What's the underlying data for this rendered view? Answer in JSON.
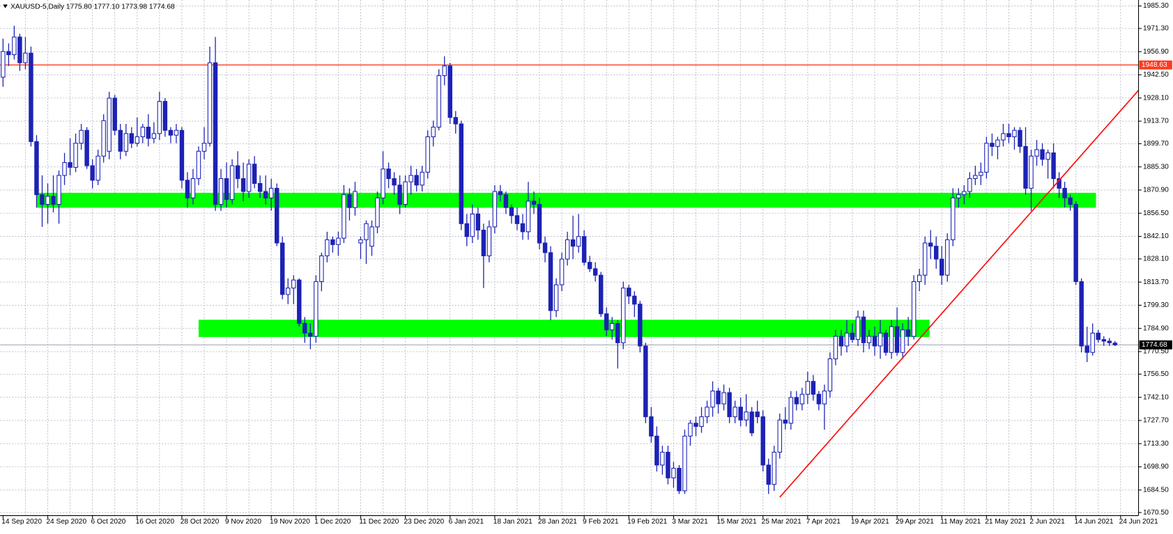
{
  "chart_data": {
    "type": "candlestick",
    "title": "XAUUSD-5,Daily 1775.80 1777.10 1773.98 1774.68",
    "categories": [
      "14 Sep 2020",
      null,
      null,
      null,
      null,
      null,
      null,
      null,
      "24 Sep 2020",
      null,
      null,
      null,
      null,
      null,
      null,
      null,
      "6 Oct 2020",
      null,
      null,
      null,
      null,
      null,
      null,
      null,
      "16 Oct 2020",
      null,
      null,
      null,
      null,
      null,
      null,
      null,
      "28 Oct 2020",
      null,
      null,
      null,
      null,
      null,
      null,
      null,
      "9 Nov 2020",
      null,
      null,
      null,
      null,
      null,
      null,
      null,
      "19 Nov 2020",
      null,
      null,
      null,
      null,
      null,
      null,
      null,
      "1 Dec 2020",
      null,
      null,
      null,
      null,
      null,
      null,
      null,
      "11 Dec 2020",
      null,
      null,
      null,
      null,
      null,
      null,
      null,
      "23 Dec 2020",
      null,
      null,
      null,
      null,
      null,
      null,
      null,
      "6 Jan 2021",
      null,
      null,
      null,
      null,
      null,
      null,
      null,
      "18 Jan 2021",
      null,
      null,
      null,
      null,
      null,
      null,
      null,
      "28 Jan 2021",
      null,
      null,
      null,
      null,
      null,
      null,
      null,
      "9 Feb 2021",
      null,
      null,
      null,
      null,
      null,
      null,
      null,
      "19 Feb 2021",
      null,
      null,
      null,
      null,
      null,
      null,
      null,
      "3 Mar 2021",
      null,
      null,
      null,
      null,
      null,
      null,
      null,
      "15 Mar 2021",
      null,
      null,
      null,
      null,
      null,
      null,
      null,
      "25 Mar 2021",
      null,
      null,
      null,
      null,
      null,
      null,
      null,
      "7 Apr 2021",
      null,
      null,
      null,
      null,
      null,
      null,
      null,
      "19 Apr 2021",
      null,
      null,
      null,
      null,
      null,
      null,
      null,
      "29 Apr 2021",
      null,
      null,
      null,
      null,
      null,
      null,
      null,
      "11 May 2021",
      null,
      null,
      null,
      null,
      null,
      null,
      null,
      "21 May 2021",
      null,
      null,
      null,
      null,
      null,
      null,
      null,
      "2 Jun 2021",
      null,
      null,
      null,
      null,
      null,
      null,
      null,
      "14 Jun 2021",
      null,
      null,
      null,
      null,
      null,
      null,
      null,
      "24 Jun 2021"
    ],
    "candles": [
      [
        1941,
        1965,
        1935,
        1957
      ],
      [
        1957,
        1962,
        1948,
        1955
      ],
      [
        1955,
        1973,
        1952,
        1966
      ],
      [
        1966,
        1968,
        1945,
        1950
      ],
      [
        1950,
        1966,
        1946,
        1956
      ],
      [
        1956,
        1960,
        1898,
        1901
      ],
      [
        1901,
        1905,
        1860,
        1868
      ],
      [
        1868,
        1880,
        1848,
        1862
      ],
      [
        1862,
        1875,
        1850,
        1867
      ],
      [
        1867,
        1880,
        1857,
        1862
      ],
      [
        1862,
        1883,
        1850,
        1880
      ],
      [
        1880,
        1894,
        1874,
        1888
      ],
      [
        1888,
        1903,
        1880,
        1885
      ],
      [
        1885,
        1906,
        1882,
        1900
      ],
      [
        1900,
        1912,
        1896,
        1908
      ],
      [
        1908,
        1910,
        1884,
        1886
      ],
      [
        1886,
        1890,
        1872,
        1877
      ],
      [
        1877,
        1896,
        1874,
        1892
      ],
      [
        1892,
        1918,
        1888,
        1914
      ],
      [
        1895,
        1932,
        1890,
        1928
      ],
      [
        1928,
        1930,
        1905,
        1908
      ],
      [
        1908,
        1912,
        1890,
        1895
      ],
      [
        1895,
        1912,
        1892,
        1906
      ],
      [
        1906,
        1910,
        1897,
        1900
      ],
      [
        1900,
        1916,
        1898,
        1904
      ],
      [
        1904,
        1912,
        1900,
        1910
      ],
      [
        1910,
        1918,
        1898,
        1903
      ],
      [
        1903,
        1913,
        1900,
        1906
      ],
      [
        1906,
        1932,
        1902,
        1926
      ],
      [
        1926,
        1928,
        1904,
        1908
      ],
      [
        1908,
        1910,
        1900,
        1905
      ],
      [
        1905,
        1912,
        1900,
        1908
      ],
      [
        1908,
        1910,
        1872,
        1877
      ],
      [
        1877,
        1882,
        1860,
        1866
      ],
      [
        1866,
        1884,
        1862,
        1878
      ],
      [
        1878,
        1898,
        1874,
        1895
      ],
      [
        1895,
        1910,
        1890,
        1900
      ],
      [
        1900,
        1960,
        1898,
        1950
      ],
      [
        1950,
        1966,
        1858,
        1862
      ],
      [
        1862,
        1884,
        1858,
        1878
      ],
      [
        1878,
        1888,
        1860,
        1865
      ],
      [
        1865,
        1890,
        1862,
        1886
      ],
      [
        1886,
        1895,
        1872,
        1878
      ],
      [
        1878,
        1888,
        1864,
        1870
      ],
      [
        1870,
        1890,
        1866,
        1887
      ],
      [
        1887,
        1892,
        1872,
        1875
      ],
      [
        1875,
        1880,
        1866,
        1870
      ],
      [
        1870,
        1880,
        1862,
        1866
      ],
      [
        1866,
        1878,
        1858,
        1872
      ],
      [
        1872,
        1875,
        1836,
        1838
      ],
      [
        1838,
        1842,
        1803,
        1806
      ],
      [
        1806,
        1816,
        1800,
        1810
      ],
      [
        1810,
        1818,
        1800,
        1815
      ],
      [
        1815,
        1816,
        1786,
        1788
      ],
      [
        1788,
        1792,
        1776,
        1782
      ],
      [
        1782,
        1788,
        1772,
        1780
      ],
      [
        1780,
        1818,
        1776,
        1814
      ],
      [
        1814,
        1832,
        1808,
        1830
      ],
      [
        1830,
        1845,
        1826,
        1840
      ],
      [
        1840,
        1842,
        1832,
        1837
      ],
      [
        1837,
        1845,
        1830,
        1841
      ],
      [
        1841,
        1874,
        1838,
        1868
      ],
      [
        1868,
        1872,
        1852,
        1860
      ],
      [
        1860,
        1876,
        1855,
        1870
      ],
      [
        1838,
        1842,
        1828,
        1840
      ],
      [
        1840,
        1852,
        1825,
        1850
      ],
      [
        1836,
        1852,
        1830,
        1848
      ],
      [
        1848,
        1870,
        1844,
        1866
      ],
      [
        1866,
        1895,
        1862,
        1884
      ],
      [
        1884,
        1888,
        1872,
        1878
      ],
      [
        1878,
        1882,
        1868,
        1874
      ],
      [
        1874,
        1880,
        1856,
        1862
      ],
      [
        1862,
        1880,
        1860,
        1876
      ],
      [
        1876,
        1886,
        1868,
        1880
      ],
      [
        1880,
        1884,
        1870,
        1874
      ],
      [
        1874,
        1886,
        1870,
        1882
      ],
      [
        1882,
        1908,
        1878,
        1904
      ],
      [
        1904,
        1914,
        1898,
        1910
      ],
      [
        1910,
        1946,
        1908,
        1942
      ],
      [
        1942,
        1954,
        1936,
        1948
      ],
      [
        1948,
        1950,
        1912,
        1916
      ],
      [
        1916,
        1920,
        1906,
        1912
      ],
      [
        1912,
        1914,
        1846,
        1850
      ],
      [
        1850,
        1856,
        1836,
        1842
      ],
      [
        1842,
        1862,
        1838,
        1856
      ],
      [
        1856,
        1860,
        1840,
        1846
      ],
      [
        1846,
        1850,
        1810,
        1830
      ],
      [
        1830,
        1852,
        1826,
        1848
      ],
      [
        1848,
        1874,
        1844,
        1870
      ],
      [
        1870,
        1874,
        1864,
        1868
      ],
      [
        1868,
        1870,
        1856,
        1860
      ],
      [
        1860,
        1862,
        1850,
        1855
      ],
      [
        1855,
        1860,
        1846,
        1850
      ],
      [
        1850,
        1856,
        1840,
        1845
      ],
      [
        1845,
        1876,
        1840,
        1864
      ],
      [
        1864,
        1870,
        1856,
        1862
      ],
      [
        1862,
        1866,
        1834,
        1838
      ],
      [
        1838,
        1842,
        1826,
        1832
      ],
      [
        1832,
        1836,
        1790,
        1796
      ],
      [
        1796,
        1816,
        1792,
        1812
      ],
      [
        1812,
        1832,
        1808,
        1828
      ],
      [
        1828,
        1845,
        1824,
        1840
      ],
      [
        1840,
        1855,
        1828,
        1836
      ],
      [
        1836,
        1856,
        1832,
        1842
      ],
      [
        1842,
        1846,
        1824,
        1826
      ],
      [
        1826,
        1830,
        1820,
        1822
      ],
      [
        1822,
        1826,
        1814,
        1818
      ],
      [
        1818,
        1820,
        1792,
        1794
      ],
      [
        1794,
        1798,
        1780,
        1784
      ],
      [
        1784,
        1792,
        1778,
        1788
      ],
      [
        1788,
        1790,
        1760,
        1776
      ],
      [
        1776,
        1814,
        1772,
        1810
      ],
      [
        1810,
        1812,
        1800,
        1805
      ],
      [
        1805,
        1808,
        1792,
        1800
      ],
      [
        1800,
        1802,
        1770,
        1774
      ],
      [
        1774,
        1776,
        1726,
        1730
      ],
      [
        1730,
        1736,
        1714,
        1718
      ],
      [
        1718,
        1724,
        1696,
        1700
      ],
      [
        1700,
        1712,
        1694,
        1708
      ],
      [
        1708,
        1712,
        1688,
        1692
      ],
      [
        1692,
        1702,
        1686,
        1698
      ],
      [
        1698,
        1700,
        1682,
        1684
      ],
      [
        1684,
        1722,
        1682,
        1718
      ],
      [
        1718,
        1728,
        1712,
        1726
      ],
      [
        1726,
        1730,
        1718,
        1724
      ],
      [
        1724,
        1736,
        1720,
        1730
      ],
      [
        1730,
        1740,
        1726,
        1736
      ],
      [
        1736,
        1752,
        1730,
        1746
      ],
      [
        1746,
        1748,
        1732,
        1738
      ],
      [
        1738,
        1750,
        1734,
        1745
      ],
      [
        1745,
        1748,
        1726,
        1730
      ],
      [
        1730,
        1740,
        1726,
        1736
      ],
      [
        1736,
        1742,
        1724,
        1728
      ],
      [
        1728,
        1744,
        1724,
        1733
      ],
      [
        1733,
        1736,
        1718,
        1720
      ],
      [
        1733,
        1740,
        1726,
        1730
      ],
      [
        1730,
        1734,
        1696,
        1700
      ],
      [
        1700,
        1704,
        1682,
        1688
      ],
      [
        1688,
        1712,
        1684,
        1708
      ],
      [
        1708,
        1732,
        1704,
        1728
      ],
      [
        1728,
        1736,
        1722,
        1726
      ],
      [
        1726,
        1746,
        1722,
        1742
      ],
      [
        1742,
        1746,
        1734,
        1738
      ],
      [
        1738,
        1748,
        1734,
        1744
      ],
      [
        1744,
        1758,
        1738,
        1752
      ],
      [
        1752,
        1756,
        1740,
        1744
      ],
      [
        1744,
        1746,
        1734,
        1738
      ],
      [
        1738,
        1750,
        1722,
        1746
      ],
      [
        1746,
        1770,
        1742,
        1766
      ],
      [
        1766,
        1784,
        1762,
        1780
      ],
      [
        1780,
        1784,
        1768,
        1774
      ],
      [
        1774,
        1790,
        1770,
        1782
      ],
      [
        1782,
        1788,
        1776,
        1778
      ],
      [
        1778,
        1796,
        1774,
        1792
      ],
      [
        1792,
        1796,
        1770,
        1776
      ],
      [
        1776,
        1784,
        1772,
        1780
      ],
      [
        1780,
        1786,
        1768,
        1774
      ],
      [
        1774,
        1790,
        1766,
        1782
      ],
      [
        1782,
        1784,
        1768,
        1770
      ],
      [
        1770,
        1790,
        1766,
        1786
      ],
      [
        1786,
        1798,
        1768,
        1770
      ],
      [
        1770,
        1788,
        1766,
        1784
      ],
      [
        1784,
        1792,
        1774,
        1780
      ],
      [
        1780,
        1818,
        1778,
        1814
      ],
      [
        1814,
        1822,
        1808,
        1818
      ],
      [
        1818,
        1842,
        1812,
        1838
      ],
      [
        1838,
        1846,
        1828,
        1836
      ],
      [
        1836,
        1842,
        1822,
        1828
      ],
      [
        1828,
        1836,
        1812,
        1818
      ],
      [
        1818,
        1844,
        1814,
        1840
      ],
      [
        1840,
        1872,
        1836,
        1866
      ],
      [
        1866,
        1872,
        1860,
        1868
      ],
      [
        1868,
        1874,
        1862,
        1870
      ],
      [
        1870,
        1882,
        1866,
        1878
      ],
      [
        1878,
        1886,
        1874,
        1880
      ],
      [
        1880,
        1888,
        1874,
        1882
      ],
      [
        1882,
        1904,
        1878,
        1900
      ],
      [
        1900,
        1906,
        1892,
        1898
      ],
      [
        1898,
        1904,
        1890,
        1902
      ],
      [
        1902,
        1912,
        1898,
        1906
      ],
      [
        1906,
        1912,
        1900,
        1904
      ],
      [
        1904,
        1910,
        1896,
        1908
      ],
      [
        1908,
        1910,
        1894,
        1898
      ],
      [
        1898,
        1910,
        1868,
        1872
      ],
      [
        1872,
        1896,
        1858,
        1892
      ],
      [
        1892,
        1902,
        1886,
        1896
      ],
      [
        1896,
        1900,
        1886,
        1890
      ],
      [
        1890,
        1896,
        1878,
        1894
      ],
      [
        1894,
        1900,
        1872,
        1878
      ],
      [
        1878,
        1882,
        1866,
        1872
      ],
      [
        1872,
        1876,
        1860,
        1866
      ],
      [
        1866,
        1868,
        1858,
        1862
      ],
      [
        1862,
        1864,
        1812,
        1814
      ],
      [
        1814,
        1816,
        1770,
        1774
      ],
      [
        1774,
        1786,
        1764,
        1770
      ],
      [
        1770,
        1788,
        1768,
        1782
      ],
      [
        1782,
        1784,
        1776,
        1778
      ],
      [
        1778,
        1780,
        1774,
        1777
      ],
      [
        1777,
        1779,
        1774,
        1776
      ],
      [
        1775.8,
        1777.1,
        1773.98,
        1774.68
      ]
    ],
    "candle_color": "#1c22b4",
    "bull_fill": "#ffffff",
    "ylim": [
      1668.6,
      1989.0
    ],
    "yticks": [
      {
        "value": 1985.3,
        "label": "1985.30"
      },
      {
        "value": 1971.3,
        "label": "1971.30"
      },
      {
        "value": 1956.9,
        "label": "1956.90"
      },
      {
        "value": 1942.5,
        "label": "1942.50"
      },
      {
        "value": 1928.1,
        "label": "1928.10"
      },
      {
        "value": 1913.7,
        "label": "1913.70"
      },
      {
        "value": 1899.7,
        "label": "1899.70"
      },
      {
        "value": 1885.3,
        "label": "1885.30"
      },
      {
        "value": 1870.9,
        "label": "1870.90"
      },
      {
        "value": 1856.5,
        "label": "1856.50"
      },
      {
        "value": 1842.1,
        "label": "1842.10"
      },
      {
        "value": 1828.1,
        "label": "1828.10"
      },
      {
        "value": 1813.7,
        "label": "1813.70"
      },
      {
        "value": 1799.3,
        "label": "1799.30"
      },
      {
        "value": 1784.9,
        "label": "1784.90"
      },
      {
        "value": 1770.5,
        "label": "1770.50"
      },
      {
        "value": 1756.5,
        "label": "1756.50"
      },
      {
        "value": 1742.1,
        "label": "1742.10"
      },
      {
        "value": 1727.7,
        "label": "1727.70"
      },
      {
        "value": 1713.3,
        "label": "1713.30"
      },
      {
        "value": 1698.9,
        "label": "1698.90"
      },
      {
        "value": 1684.5,
        "label": "1684.50"
      },
      {
        "value": 1670.5,
        "label": "1670.50"
      }
    ],
    "grid": true,
    "levels": [
      {
        "value": 1948.63,
        "label": "1948.63",
        "color": "#ff3b1f"
      }
    ],
    "current_price": {
      "value": 1774.68,
      "label": "1774.68",
      "color": "#8f96a8"
    },
    "zones": [
      {
        "from": 6,
        "to": 195.6,
        "low": 1859.9,
        "high": 1869.2,
        "color": "#00ff00"
      },
      {
        "from": 35,
        "to": 165.8,
        "low": 1779.6,
        "high": 1790.3,
        "color": "#00ff00"
      }
    ],
    "trendlines": [
      {
        "x": [
          139,
          203.5
        ],
        "y": [
          1680,
          1934
        ],
        "color": "#ff1010"
      }
    ]
  }
}
